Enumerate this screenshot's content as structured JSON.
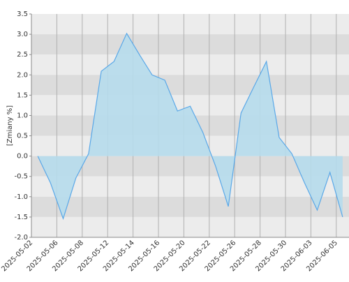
{
  "chart_data": {
    "type": "area",
    "y_label": "[Zmiany %]",
    "x": [
      0.5,
      1.5,
      2.5,
      3.5,
      4.5,
      5.5,
      6.5,
      7.5,
      8.5,
      9.5,
      10.5,
      11.5,
      12.5,
      13.5,
      14.5,
      15.5,
      16.5,
      17.5,
      18.5,
      19.5,
      20.5,
      21.5,
      22.5,
      23.5,
      24.5
    ],
    "values": [
      0.0,
      -0.66,
      -1.54,
      -0.54,
      0.06,
      2.09,
      2.33,
      3.02,
      2.5,
      2.0,
      1.87,
      1.11,
      1.23,
      0.58,
      -0.25,
      -1.24,
      1.06,
      1.7,
      2.33,
      0.46,
      0.06,
      -0.66,
      -1.33,
      -0.4,
      -1.5
    ],
    "color": "#5aa8e8",
    "fill": "#b6dcec",
    "xlim": [
      0,
      25
    ],
    "xticks": [
      {
        "value": 0,
        "label": "2025-05-02"
      },
      {
        "value": 2,
        "label": "2025-05-06"
      },
      {
        "value": 4,
        "label": "2025-05-08"
      },
      {
        "value": 6,
        "label": "2025-05-12"
      },
      {
        "value": 8,
        "label": "2025-05-14"
      },
      {
        "value": 10,
        "label": "2025-05-16"
      },
      {
        "value": 12,
        "label": "2025-05-20"
      },
      {
        "value": 14,
        "label": "2025-05-22"
      },
      {
        "value": 16,
        "label": "2025-05-26"
      },
      {
        "value": 18,
        "label": "2025-05-28"
      },
      {
        "value": 20,
        "label": "2025-05-30"
      },
      {
        "value": 22,
        "label": "2025-06-03"
      },
      {
        "value": 24,
        "label": "2025-06-05"
      }
    ],
    "ylim": [
      -2,
      3.5
    ],
    "yticks": [
      3.5,
      {
        "value": 3,
        "label": "3.0"
      },
      2.5,
      {
        "value": 2,
        "label": "2.0"
      },
      1.5,
      {
        "value": 1,
        "label": "1.0"
      },
      0.5,
      {
        "value": 0,
        "label": "0.0"
      },
      -0.5,
      {
        "value": -1,
        "label": "-1.0"
      },
      -1.5,
      {
        "value": -2,
        "label": "-2.0"
      }
    ],
    "grid": true
  }
}
